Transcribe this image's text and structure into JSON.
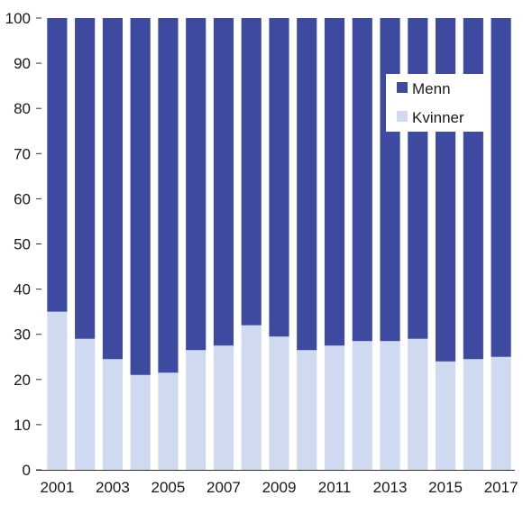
{
  "chart_data": {
    "type": "bar",
    "stacked": true,
    "percent": true,
    "categories": [
      "2001",
      "2002",
      "2003",
      "2004",
      "2005",
      "2006",
      "2007",
      "2008",
      "2009",
      "2010",
      "2011",
      "2012",
      "2013",
      "2014",
      "2015",
      "2016",
      "2017"
    ],
    "x_tick_labels": [
      "2001",
      "2003",
      "2005",
      "2007",
      "2009",
      "2011",
      "2013",
      "2015",
      "2017"
    ],
    "y_tick_labels": [
      "0",
      "10",
      "20",
      "30",
      "40",
      "50",
      "60",
      "70",
      "80",
      "90",
      "100"
    ],
    "ylim": [
      0,
      100
    ],
    "ystep": 10,
    "grid": false,
    "legend_placement": "top-right",
    "series": [
      {
        "name": "Kvinner",
        "color": "#cfd9ef",
        "values": [
          35,
          29,
          24.5,
          21,
          21.5,
          26.5,
          27.5,
          32,
          29.5,
          26.5,
          27.5,
          28.5,
          28.5,
          29,
          24,
          24.5,
          25
        ]
      },
      {
        "name": "Menn",
        "color": "#3e4a9f",
        "values": [
          65,
          71,
          75.5,
          79,
          78.5,
          73.5,
          72.5,
          68,
          70.5,
          73.5,
          72.5,
          71.5,
          71.5,
          71,
          76,
          75.5,
          75
        ]
      }
    ],
    "legend": [
      {
        "label": "Menn",
        "color": "#3e4a9f"
      },
      {
        "label": "Kvinner",
        "color": "#cfd9ef"
      }
    ]
  }
}
